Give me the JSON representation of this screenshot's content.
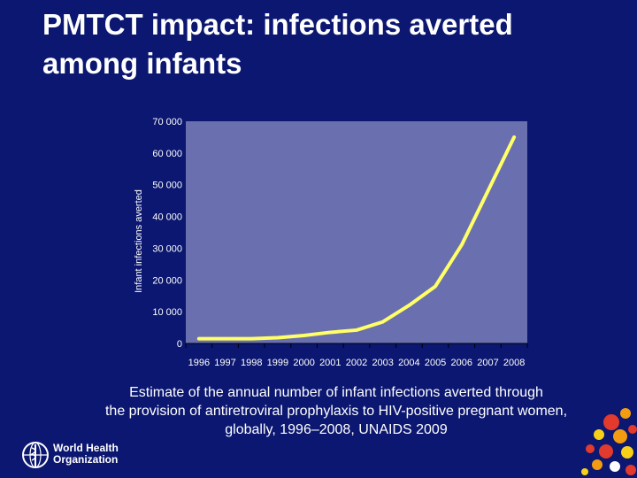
{
  "slide": {
    "title_line1": "PMTCT impact: infections averted",
    "title_line2": "among infants",
    "caption_line1": "Estimate of the annual number of infant infections averted through",
    "caption_line2": "the provision of antiretroviral prophylaxis to HIV-positive pregnant women,",
    "caption_line3": "globally, 1996–2008, UNAIDS 2009",
    "logo_line1": "World Health",
    "logo_line2": "Organization"
  },
  "colors": {
    "background": "#0b1770",
    "plot_area": "#6a6fb0",
    "line": "#ffff66",
    "text": "#ffffff"
  },
  "chart_data": {
    "type": "line",
    "title": "",
    "xlabel": "",
    "ylabel": "Infant infections averted",
    "ylim": [
      0,
      70000
    ],
    "yticks": [
      0,
      10000,
      20000,
      30000,
      40000,
      50000,
      60000,
      70000
    ],
    "ytick_labels": [
      "0",
      "10 000",
      "20 000",
      "30 000",
      "40 000",
      "50 000",
      "60 000",
      "70 000"
    ],
    "categories": [
      "1996",
      "1997",
      "1998",
      "1999",
      "2000",
      "2001",
      "2002",
      "2003",
      "2004",
      "2005",
      "2006",
      "2007",
      "2008"
    ],
    "series": [
      {
        "name": "Infant infections averted",
        "values": [
          1500,
          1500,
          1500,
          1800,
          2500,
          3500,
          4200,
          6800,
          12000,
          18000,
          31000,
          48000,
          65000
        ]
      }
    ],
    "grid": false,
    "legend": "none"
  }
}
